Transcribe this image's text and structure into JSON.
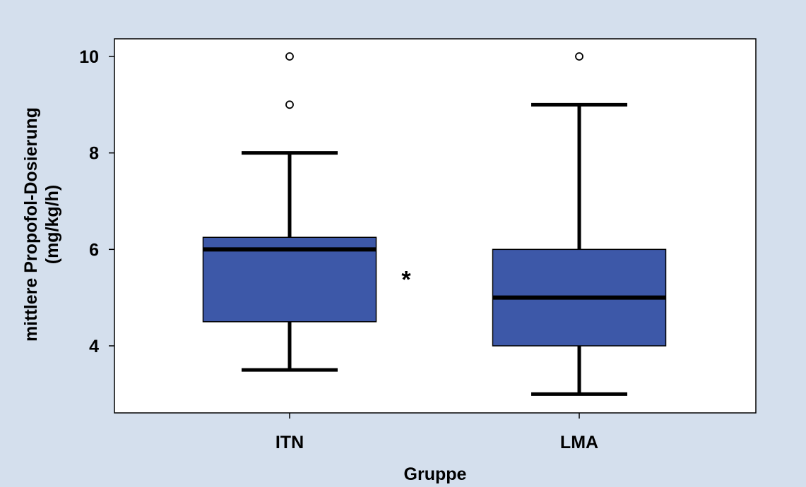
{
  "chart_data": {
    "type": "box",
    "title": "",
    "xlabel": "Gruppe",
    "ylabel_lines": [
      "mittlere Propofol-Dosierung",
      "(mg/kg/h)"
    ],
    "ylim": [
      2.8,
      10.4
    ],
    "yticks": [
      4,
      6,
      8,
      10
    ],
    "ytick_labels": [
      "4",
      "6",
      "8",
      "10"
    ],
    "grid": false,
    "categories": [
      "ITN",
      "LMA"
    ],
    "boxes": [
      {
        "category": "ITN",
        "whisker_low": 3.5,
        "q1": 4.5,
        "median": 6.0,
        "q3": 6.25,
        "whisker_high": 8.0,
        "outliers": [
          9,
          10
        ]
      },
      {
        "category": "LMA",
        "whisker_low": 3.0,
        "q1": 4.0,
        "median": 5.0,
        "q3": 6.0,
        "whisker_high": 9.0,
        "outliers": [
          10
        ]
      }
    ],
    "annotations": [
      {
        "text": "*",
        "y": 5.5
      }
    ],
    "colors": {
      "background": "#d4dfed",
      "plot_area": "#ffffff",
      "box_fill": "#3d58a8",
      "lines": "#000000"
    }
  }
}
